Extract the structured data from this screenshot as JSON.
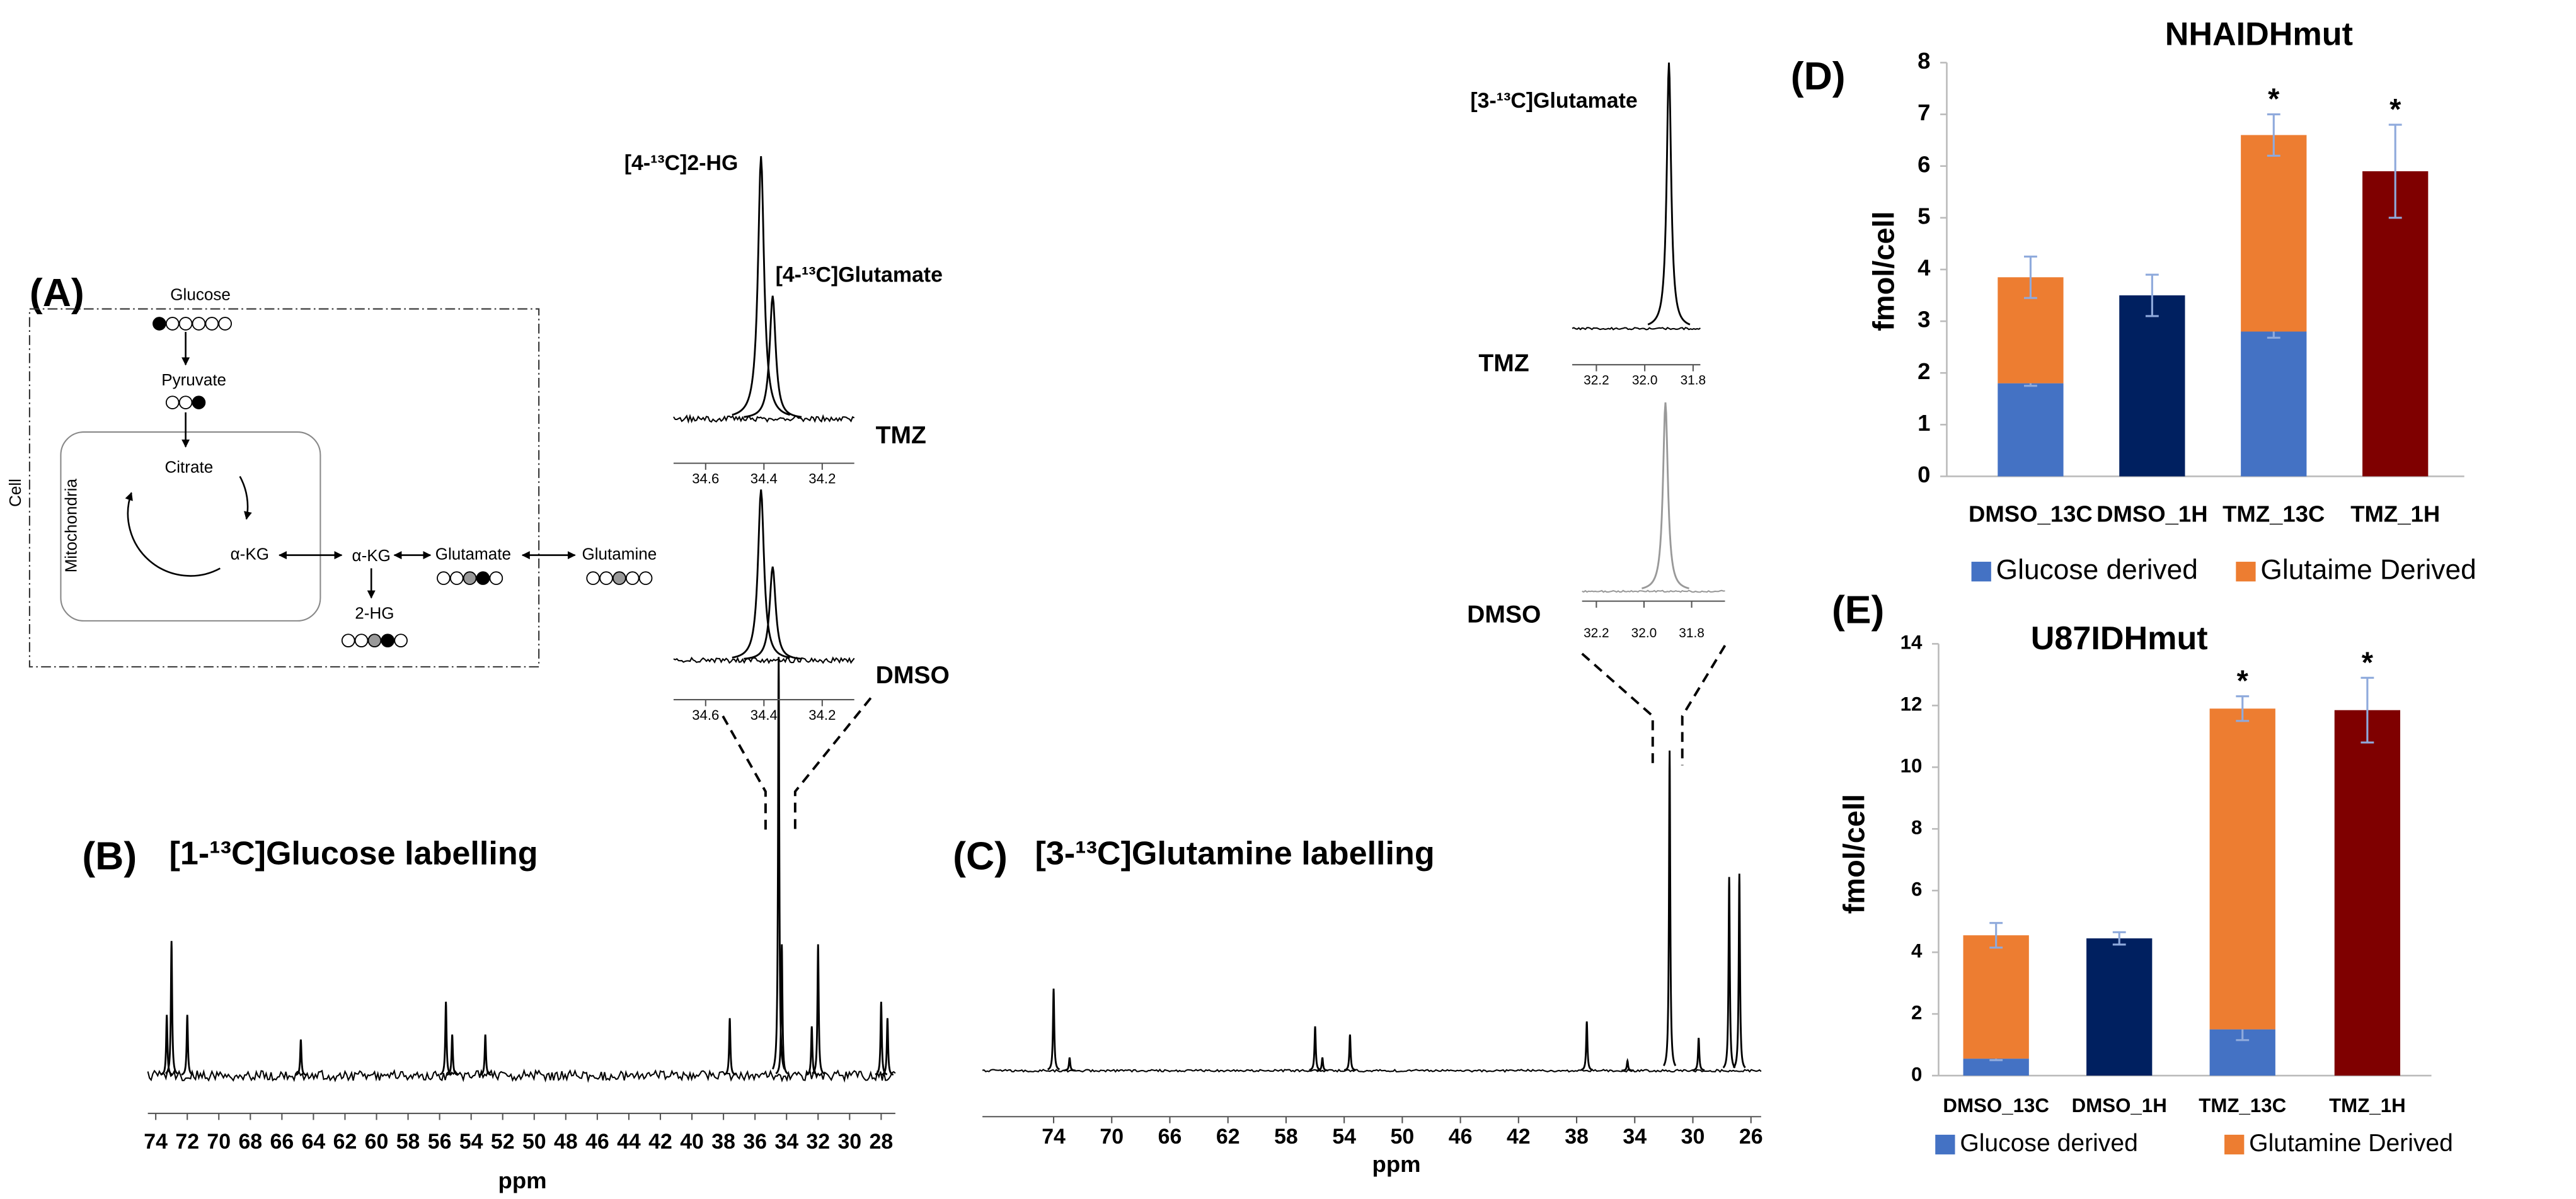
{
  "chart_data": [
    {
      "type": "diagram",
      "panel_label": "(A)",
      "labels": {
        "glucose": "Glucose",
        "pyruvate": "Pyruvate",
        "citrate": "Citrate",
        "akg_mito": "α-KG",
        "akg": "α-KG",
        "glutamate": "Glutamate",
        "glutamine": "Glutamine",
        "hg2": "2-HG",
        "cell": "Cell",
        "mitochondria": "Mitochondria"
      }
    },
    {
      "type": "spectrum",
      "panel_label": "(B)",
      "title": "[1-¹³C]Glucose labelling",
      "xlabel": "ppm",
      "xlim": [
        74.5,
        27.1
      ],
      "ylim": [
        0,
        260
      ],
      "xticks": [
        74,
        72,
        70,
        68,
        66,
        64,
        62,
        60,
        58,
        56,
        54,
        52,
        50,
        48,
        46,
        44,
        42,
        40,
        38,
        36,
        34,
        32,
        30,
        28
      ],
      "color": "#000000",
      "peaks": {
        "x": [
          73.3,
          73.0,
          72.0,
          64.8,
          55.6,
          55.2,
          53.1,
          37.6,
          34.5,
          34.3,
          32.4,
          32.0,
          28.0,
          27.6
        ],
        "values": [
          37,
          82,
          37,
          22,
          45,
          25,
          25,
          35,
          255,
          80,
          30,
          80,
          45,
          35
        ]
      }
    },
    {
      "type": "spectrum",
      "label": "TMZ",
      "annotations": [
        "[4-¹³C]2-HG",
        "[4-¹³C]Glutamate"
      ],
      "xlim": [
        34.71,
        34.09
      ],
      "ylim": [
        0,
        160
      ],
      "xticks": [
        34.6,
        34.4,
        34.2
      ],
      "color": "#000000",
      "peaks": {
        "x": [
          34.41,
          34.37
        ],
        "values": [
          160,
          75
        ]
      }
    },
    {
      "type": "spectrum",
      "label": "DMSO",
      "xlim": [
        34.71,
        34.09
      ],
      "ylim": [
        0,
        160
      ],
      "xticks": [
        34.6,
        34.4,
        34.2
      ],
      "color": "#000000",
      "peaks": {
        "x": [
          34.41,
          34.37
        ],
        "values": [
          104,
          57
        ]
      }
    },
    {
      "type": "spectrum",
      "panel_label": "(C)",
      "title": "[3-¹³C]Glutamine labelling",
      "xlabel": "ppm",
      "xlim": [
        78.9,
        25.3
      ],
      "ylim": [
        0,
        200
      ],
      "xticks": [
        74,
        70,
        66,
        62,
        58,
        54,
        50,
        46,
        42,
        38,
        34,
        30,
        26
      ],
      "color": "#000000",
      "peaks": {
        "x": [
          74.0,
          72.9,
          56.0,
          55.5,
          53.6,
          37.3,
          34.5,
          31.6,
          29.6,
          27.5,
          26.8
        ],
        "values": [
          50,
          8,
          27,
          8,
          22,
          30,
          6,
          195,
          20,
          118,
          120
        ]
      }
    },
    {
      "type": "spectrum",
      "label": "TMZ",
      "annotations": [
        "[3-¹³C]Glutamate"
      ],
      "xlim": [
        32.3,
        31.77
      ],
      "ylim": [
        0,
        165
      ],
      "xticks": [
        32.2,
        {
          "value": 32,
          "label": "32.0"
        },
        31.8
      ],
      "color": "#000000",
      "peaks": {
        "x": [
          31.9
        ],
        "values": [
          162
        ]
      }
    },
    {
      "type": "spectrum",
      "label": "DMSO",
      "xlim": [
        32.26,
        31.66
      ],
      "ylim": [
        0,
        120
      ],
      "xticks": [
        32.2,
        {
          "value": 32,
          "label": "32.0"
        },
        31.8
      ],
      "color": "#999999",
      "peaks": {
        "x": [
          31.91
        ],
        "values": [
          115
        ]
      }
    },
    {
      "type": "bar",
      "stacked": true,
      "panel_label": "(D)",
      "title": "NHAIDHmut",
      "ylabel": "fmol/cell",
      "categories": [
        "DMSO_13C",
        "DMSO_1H",
        "TMZ_13C",
        "TMZ_1H"
      ],
      "ylim": [
        0,
        8
      ],
      "yticks": [
        0,
        1,
        2,
        3,
        4,
        5,
        6,
        7,
        8
      ],
      "error_color": "#8faadc",
      "series": [
        {
          "name": "Glucose derived",
          "color": "#4472c4",
          "values": [
            1.8,
            null,
            2.8,
            null
          ],
          "errors": [
            0.05,
            null,
            0.12,
            null
          ],
          "significance": [
            null,
            null,
            "*",
            null
          ]
        },
        {
          "name": "Glutaime Derived",
          "color": "#ed7d31",
          "values": [
            2.05,
            null,
            3.8,
            null
          ],
          "errors": [
            0.4,
            null,
            0.4,
            null
          ],
          "significance": [
            null,
            null,
            "*",
            null
          ]
        },
        {
          "colors": [
            null,
            "#002060",
            null,
            "#7f0000"
          ],
          "values": [
            null,
            3.5,
            null,
            5.9
          ],
          "errors": [
            null,
            0.4,
            null,
            0.9
          ],
          "significance": [
            null,
            null,
            null,
            "*"
          ]
        }
      ]
    },
    {
      "type": "bar",
      "stacked": true,
      "panel_label": "(E)",
      "title": "U87IDHmut",
      "ylabel": "fmol/cell",
      "categories": [
        "DMSO_13C",
        "DMSO_1H",
        "TMZ_13C",
        "TMZ_1H"
      ],
      "ylim": [
        0,
        14
      ],
      "yticks": [
        0,
        2,
        4,
        6,
        8,
        10,
        12,
        14
      ],
      "error_color": "#8faadc",
      "series": [
        {
          "name": "Glucose derived",
          "color": "#4472c4",
          "values": [
            0.55,
            null,
            1.5,
            null
          ],
          "errors": [
            0.05,
            null,
            0.35,
            null
          ],
          "significance": [
            null,
            null,
            "*",
            null
          ]
        },
        {
          "name": "Glutamine Derived",
          "color": "#ed7d31",
          "values": [
            4.0,
            null,
            10.4,
            null
          ],
          "errors": [
            0.4,
            null,
            0.4,
            null
          ],
          "significance": [
            null,
            null,
            "*",
            null
          ]
        },
        {
          "colors": [
            null,
            "#002060",
            null,
            "#7f0000"
          ],
          "values": [
            null,
            4.45,
            null,
            11.85
          ],
          "errors": [
            null,
            0.2,
            null,
            1.05
          ],
          "significance": [
            null,
            null,
            null,
            "*"
          ]
        }
      ]
    }
  ]
}
